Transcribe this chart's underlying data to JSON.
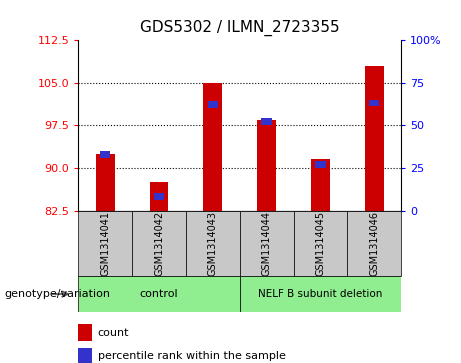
{
  "title": "GDS5302 / ILMN_2723355",
  "samples": [
    "GSM1314041",
    "GSM1314042",
    "GSM1314043",
    "GSM1314044",
    "GSM1314045",
    "GSM1314046"
  ],
  "count_values": [
    92.5,
    87.5,
    105.0,
    98.5,
    91.5,
    108.0
  ],
  "percentile_values": [
    33,
    8,
    62,
    52,
    27,
    63
  ],
  "ylim_left": [
    82.5,
    112.5
  ],
  "ylim_right": [
    0,
    100
  ],
  "yticks_left": [
    82.5,
    90,
    97.5,
    105,
    112.5
  ],
  "yticks_right": [
    0,
    25,
    50,
    75,
    100
  ],
  "bar_color": "#cc0000",
  "blue_color": "#3333cc",
  "control_label": "control",
  "nelf_label": "NELF B subunit deletion",
  "genotype_label": "genotype/variation",
  "legend_count": "count",
  "legend_percentile": "percentile rank within the sample",
  "bg_xtick": "#c8c8c8",
  "bg_green": "#90ee90",
  "bar_width": 0.35
}
